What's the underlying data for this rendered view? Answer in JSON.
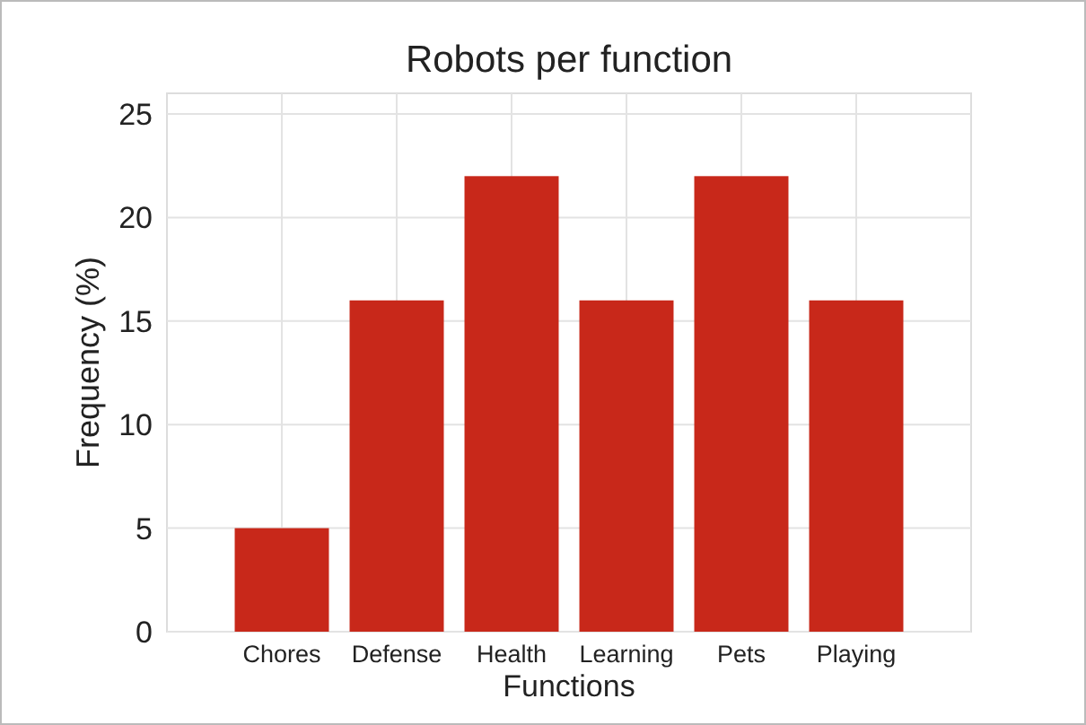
{
  "chart_data": {
    "type": "bar",
    "title": "Robots per function",
    "xlabel": "Functions",
    "ylabel": "Frequency (%)",
    "categories": [
      "Chores",
      "Defense",
      "Health",
      "Learning",
      "Pets",
      "Playing"
    ],
    "values": [
      5,
      16,
      22,
      16,
      22,
      16
    ],
    "color": "#c8281a",
    "ylim": [
      0,
      26
    ],
    "yticks": [
      0,
      5,
      10,
      15,
      20,
      25
    ],
    "grid": true
  }
}
